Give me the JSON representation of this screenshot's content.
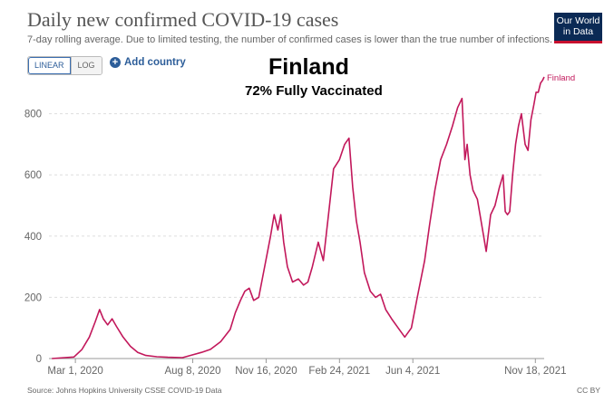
{
  "header": {
    "title": "Daily new confirmed COVID-19 cases",
    "subtitle": "7-day rolling average. Due to limited testing, the number of confirmed cases is lower than the true number of infections."
  },
  "logo": {
    "line1": "Our World",
    "line2": "in Data"
  },
  "controls": {
    "linear_label": "LINEAR",
    "log_label": "LOG",
    "add_country_label": "Add country",
    "add_icon": "plus-circle-icon"
  },
  "overlay": {
    "country_title": "Finland",
    "vaccination_note": "72% Fully Vaccinated"
  },
  "footer": {
    "source": "Source: Johns Hopkins University CSSE COVID-19 Data",
    "license": "CC BY"
  },
  "colors": {
    "line": "#c2185b",
    "grid": "#dddddd",
    "accent": "#2c5d99"
  },
  "chart_data": {
    "type": "line",
    "title": "Daily new confirmed COVID-19 cases",
    "xlabel": "",
    "ylabel": "",
    "ylim": [
      0,
      920
    ],
    "yticks": [
      0,
      200,
      400,
      600,
      800
    ],
    "x_tick_labels": [
      "Mar 1, 2020",
      "Aug 8, 2020",
      "Nov 16, 2020",
      "Feb 24, 2021",
      "Jun 4, 2021",
      "Nov 18, 2021"
    ],
    "x_tick_dates": [
      "2020-03-01",
      "2020-08-08",
      "2020-11-16",
      "2021-02-24",
      "2021-06-04",
      "2021-11-18"
    ],
    "grid": true,
    "series": [
      {
        "name": "Finland",
        "x": [
          "2020-01-29",
          "2020-02-28",
          "2020-03-10",
          "2020-03-20",
          "2020-03-28",
          "2020-04-03",
          "2020-04-08",
          "2020-04-14",
          "2020-04-20",
          "2020-04-26",
          "2020-05-05",
          "2020-05-15",
          "2020-05-25",
          "2020-06-05",
          "2020-06-20",
          "2020-07-05",
          "2020-07-25",
          "2020-08-08",
          "2020-08-20",
          "2020-09-01",
          "2020-09-15",
          "2020-09-28",
          "2020-10-05",
          "2020-10-12",
          "2020-10-18",
          "2020-10-24",
          "2020-10-30",
          "2020-11-06",
          "2020-11-14",
          "2020-11-22",
          "2020-11-27",
          "2020-12-02",
          "2020-12-06",
          "2020-12-10",
          "2020-12-15",
          "2020-12-22",
          "2020-12-30",
          "2021-01-06",
          "2021-01-12",
          "2021-01-18",
          "2021-01-26",
          "2021-02-02",
          "2021-02-09",
          "2021-02-16",
          "2021-02-24",
          "2021-03-03",
          "2021-03-09",
          "2021-03-14",
          "2021-03-19",
          "2021-03-24",
          "2021-03-30",
          "2021-04-07",
          "2021-04-14",
          "2021-04-21",
          "2021-04-28",
          "2021-05-06",
          "2021-05-15",
          "2021-05-24",
          "2021-06-02",
          "2021-06-10",
          "2021-06-20",
          "2021-06-27",
          "2021-07-04",
          "2021-07-12",
          "2021-07-20",
          "2021-07-28",
          "2021-08-04",
          "2021-08-10",
          "2021-08-14",
          "2021-08-17",
          "2021-08-21",
          "2021-08-25",
          "2021-08-31",
          "2021-09-05",
          "2021-09-12",
          "2021-09-18",
          "2021-09-24",
          "2021-09-30",
          "2021-10-05",
          "2021-10-08",
          "2021-10-11",
          "2021-10-14",
          "2021-10-18",
          "2021-10-22",
          "2021-10-26",
          "2021-10-30",
          "2021-11-04",
          "2021-11-08",
          "2021-11-12",
          "2021-11-16",
          "2021-11-19",
          "2021-11-22",
          "2021-11-25",
          "2021-11-28",
          "2021-11-30"
        ],
        "y": [
          0,
          5,
          30,
          70,
          120,
          160,
          130,
          110,
          130,
          105,
          70,
          40,
          20,
          10,
          6,
          4,
          3,
          12,
          20,
          30,
          55,
          95,
          150,
          190,
          220,
          230,
          190,
          200,
          300,
          400,
          470,
          420,
          470,
          380,
          300,
          250,
          260,
          240,
          250,
          300,
          380,
          320,
          470,
          620,
          650,
          700,
          720,
          560,
          450,
          380,
          280,
          220,
          200,
          210,
          160,
          130,
          100,
          70,
          100,
          200,
          320,
          440,
          550,
          650,
          700,
          760,
          820,
          850,
          650,
          700,
          600,
          550,
          520,
          450,
          350,
          470,
          500,
          560,
          600,
          480,
          470,
          480,
          600,
          700,
          760,
          800,
          700,
          680,
          780,
          830,
          870,
          870,
          900,
          910,
          920
        ]
      }
    ]
  }
}
